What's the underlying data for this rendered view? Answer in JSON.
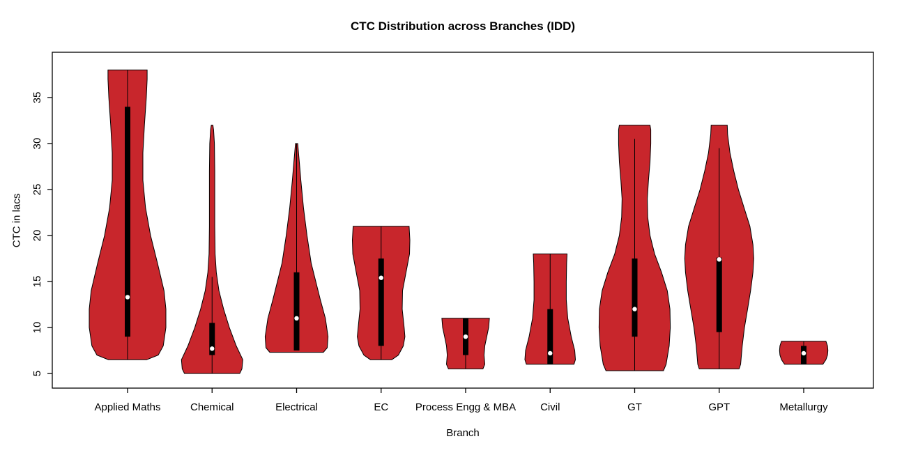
{
  "title": "CTC Distribution across Branches (IDD)",
  "colors": {
    "violin_fill": "#C8262C",
    "violin_outline": "#000000",
    "box": "#000000",
    "median_dot": "#FFFFFF",
    "axis": "#000000",
    "background": "#FFFFFF"
  },
  "chart_data": {
    "type": "violin",
    "title": "CTC Distribution across Branches (IDD)",
    "xlabel": "Branch",
    "ylabel": "CTC in lacs",
    "y_ticks": [
      5,
      10,
      15,
      20,
      25,
      30,
      35
    ],
    "ylim": [
      3.4,
      39.9
    ],
    "grid": false,
    "legend": "none",
    "categories": [
      "Applied Maths",
      "Chemical",
      "Electrical",
      "EC",
      "Process Engg & MBA",
      "Civil",
      "GT",
      "GPT",
      "Metallurgy"
    ],
    "violins": [
      {
        "branch": "Applied Maths",
        "min": 6.5,
        "max": 38,
        "q1": 9,
        "q3": 34,
        "median": 13.3,
        "line_low": 6.5,
        "line_high": 38,
        "shape": [
          [
            6.5,
            0.5
          ],
          [
            7,
            0.8
          ],
          [
            8,
            0.93
          ],
          [
            10,
            1.0
          ],
          [
            12,
            1.0
          ],
          [
            14,
            0.95
          ],
          [
            17,
            0.78
          ],
          [
            20,
            0.6
          ],
          [
            23,
            0.47
          ],
          [
            26,
            0.4
          ],
          [
            29,
            0.4
          ],
          [
            32,
            0.44
          ],
          [
            35,
            0.49
          ],
          [
            37,
            0.51
          ],
          [
            38,
            0.51
          ]
        ]
      },
      {
        "branch": "Chemical",
        "min": 5,
        "max": 32,
        "q1": 7,
        "q3": 10.5,
        "median": 7.7,
        "line_low": 5,
        "line_high": 15.5,
        "shape": [
          [
            5,
            0.72
          ],
          [
            5.5,
            0.78
          ],
          [
            6.5,
            0.8
          ],
          [
            8,
            0.63
          ],
          [
            10,
            0.45
          ],
          [
            12,
            0.3
          ],
          [
            14,
            0.18
          ],
          [
            16,
            0.11
          ],
          [
            18,
            0.08
          ],
          [
            21,
            0.07
          ],
          [
            24,
            0.07
          ],
          [
            27,
            0.07
          ],
          [
            30,
            0.06
          ],
          [
            31.5,
            0.04
          ],
          [
            32,
            0.02
          ]
        ]
      },
      {
        "branch": "Electrical",
        "min": 7.3,
        "max": 30,
        "q1": 7.5,
        "q3": 16,
        "median": 11,
        "line_low": 7.5,
        "line_high": 30,
        "shape": [
          [
            7.3,
            0.7
          ],
          [
            7.8,
            0.8
          ],
          [
            9,
            0.82
          ],
          [
            11,
            0.75
          ],
          [
            13,
            0.62
          ],
          [
            15,
            0.5
          ],
          [
            17,
            0.38
          ],
          [
            20,
            0.27
          ],
          [
            23,
            0.18
          ],
          [
            26,
            0.11
          ],
          [
            28,
            0.07
          ],
          [
            30,
            0.03
          ]
        ]
      },
      {
        "branch": "EC",
        "min": 6.5,
        "max": 21,
        "q1": 8,
        "q3": 17.5,
        "median": 15.4,
        "line_low": 6.5,
        "line_high": 21,
        "shape": [
          [
            6.5,
            0.28
          ],
          [
            7,
            0.45
          ],
          [
            8,
            0.58
          ],
          [
            9,
            0.62
          ],
          [
            10,
            0.6
          ],
          [
            12,
            0.55
          ],
          [
            14,
            0.56
          ],
          [
            16,
            0.65
          ],
          [
            18,
            0.74
          ],
          [
            19.5,
            0.75
          ],
          [
            21,
            0.73
          ]
        ]
      },
      {
        "branch": "Process Engg & MBA",
        "min": 5.5,
        "max": 11,
        "q1": 7,
        "q3": 11,
        "median": 9,
        "line_low": 5.5,
        "line_high": 11,
        "shape": [
          [
            5.5,
            0.45
          ],
          [
            6,
            0.5
          ],
          [
            7,
            0.48
          ],
          [
            8,
            0.5
          ],
          [
            9,
            0.55
          ],
          [
            10,
            0.6
          ],
          [
            11,
            0.62
          ]
        ]
      },
      {
        "branch": "Civil",
        "min": 6,
        "max": 18,
        "q1": 6,
        "q3": 12,
        "median": 7.2,
        "line_low": 6,
        "line_high": 18,
        "shape": [
          [
            6,
            0.62
          ],
          [
            6.5,
            0.66
          ],
          [
            7.5,
            0.64
          ],
          [
            9,
            0.55
          ],
          [
            11,
            0.46
          ],
          [
            13,
            0.42
          ],
          [
            15,
            0.42
          ],
          [
            17,
            0.43
          ],
          [
            18,
            0.44
          ]
        ]
      },
      {
        "branch": "GT",
        "min": 5.3,
        "max": 32,
        "q1": 9,
        "q3": 17.5,
        "median": 12,
        "line_low": 5.3,
        "line_high": 30.5,
        "shape": [
          [
            5.3,
            0.75
          ],
          [
            6,
            0.82
          ],
          [
            8,
            0.9
          ],
          [
            10,
            0.93
          ],
          [
            12,
            0.92
          ],
          [
            14,
            0.85
          ],
          [
            16,
            0.7
          ],
          [
            18,
            0.52
          ],
          [
            20,
            0.4
          ],
          [
            22,
            0.34
          ],
          [
            24,
            0.33
          ],
          [
            26,
            0.36
          ],
          [
            28,
            0.4
          ],
          [
            30,
            0.42
          ],
          [
            31.5,
            0.42
          ],
          [
            32,
            0.4
          ]
        ]
      },
      {
        "branch": "GPT",
        "min": 5.5,
        "max": 32,
        "q1": 9.5,
        "q3": 17.6,
        "median": 17.4,
        "line_low": 5.5,
        "line_high": 29.5,
        "shape": [
          [
            5.5,
            0.52
          ],
          [
            6,
            0.56
          ],
          [
            8,
            0.6
          ],
          [
            10,
            0.66
          ],
          [
            12,
            0.74
          ],
          [
            14,
            0.82
          ],
          [
            16,
            0.88
          ],
          [
            17.5,
            0.9
          ],
          [
            19,
            0.88
          ],
          [
            21,
            0.8
          ],
          [
            23,
            0.65
          ],
          [
            25,
            0.5
          ],
          [
            27,
            0.38
          ],
          [
            29,
            0.28
          ],
          [
            31,
            0.22
          ],
          [
            32,
            0.21
          ]
        ]
      },
      {
        "branch": "Metallurgy",
        "min": 6,
        "max": 8.5,
        "q1": 6,
        "q3": 8,
        "median": 7.2,
        "line_low": 6,
        "line_high": 8.5,
        "shape": [
          [
            6,
            0.5
          ],
          [
            6.5,
            0.58
          ],
          [
            7,
            0.62
          ],
          [
            7.5,
            0.63
          ],
          [
            8,
            0.62
          ],
          [
            8.5,
            0.58
          ]
        ]
      }
    ]
  }
}
